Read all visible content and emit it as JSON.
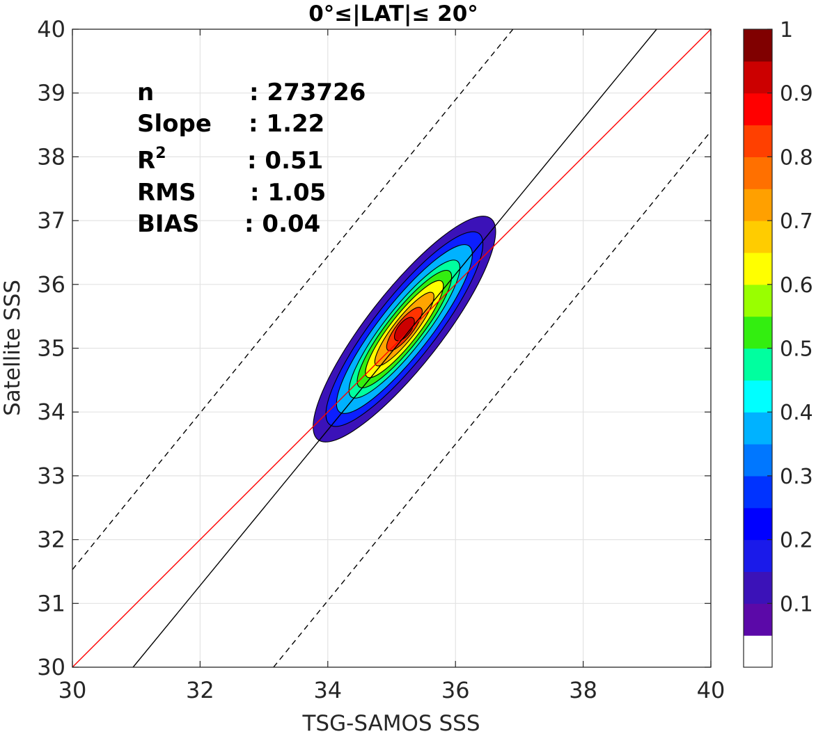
{
  "chart_data": {
    "type": "contour-scatter",
    "title": "0°≤|LAT|≤ 20°",
    "xlabel": "TSG-SAMOS SSS",
    "ylabel": "Satellite SSS",
    "xlim": [
      30,
      40
    ],
    "ylim": [
      30,
      40
    ],
    "x_ticks": [
      "30",
      "32",
      "34",
      "36",
      "38",
      "40"
    ],
    "y_ticks": [
      "30",
      "31",
      "32",
      "33",
      "34",
      "35",
      "36",
      "37",
      "38",
      "39",
      "40"
    ],
    "grid": true,
    "stats": [
      {
        "label": "n",
        "value": ": 273726"
      },
      {
        "label": "Slope",
        "value": ": 1.22"
      },
      {
        "label": "R",
        "sup": "2",
        "value": ": 0.51"
      },
      {
        "label": "RMS",
        "value": ": 1.05"
      },
      {
        "label": "BIAS",
        "value": ": 0.04"
      }
    ],
    "lines": [
      {
        "name": "one-to-one",
        "color": "#ff0000",
        "style": "solid",
        "p1": [
          30,
          30
        ],
        "p2": [
          40,
          40
        ]
      },
      {
        "name": "regression",
        "color": "#000000",
        "style": "solid",
        "p1": [
          30.95,
          30
        ],
        "p2": [
          39.15,
          40
        ]
      },
      {
        "name": "upper-bound",
        "color": "#000000",
        "style": "dashed",
        "p1": [
          30,
          31.53
        ],
        "p2": [
          36.9,
          40
        ]
      },
      {
        "name": "lower-bound",
        "color": "#000000",
        "style": "dashed",
        "p1": [
          33.15,
          30
        ],
        "p2": [
          40,
          38.4
        ]
      }
    ],
    "density_center": [
      35.2,
      35.3
    ],
    "contour_levels": [
      {
        "level": 0.05,
        "color": "#3b12b8",
        "half_major": 2.2,
        "half_minor": 0.58
      },
      {
        "level": 0.15,
        "color": "#0c1fff",
        "half_major": 1.9,
        "half_minor": 0.48
      },
      {
        "level": 0.25,
        "color": "#00b2ff",
        "half_major": 1.65,
        "half_minor": 0.4
      },
      {
        "level": 0.4,
        "color": "#00ff9f",
        "half_major": 1.35,
        "half_minor": 0.32
      },
      {
        "level": 0.5,
        "color": "#33ee10",
        "half_major": 1.15,
        "half_minor": 0.27
      },
      {
        "level": 0.6,
        "color": "#ffff00",
        "half_major": 0.95,
        "half_minor": 0.22
      },
      {
        "level": 0.7,
        "color": "#ffa500",
        "half_major": 0.72,
        "half_minor": 0.17
      },
      {
        "level": 0.85,
        "color": "#ff3300",
        "half_major": 0.42,
        "half_minor": 0.13
      },
      {
        "level": 0.95,
        "color": "#cc0000",
        "half_major": 0.22,
        "half_minor": 0.1
      }
    ],
    "colorbar": {
      "ticks": [
        "0.1",
        "0.2",
        "0.3",
        "0.4",
        "0.5",
        "0.6",
        "0.7",
        "0.8",
        "0.9",
        "1"
      ],
      "tick_values": [
        0.1,
        0.2,
        0.3,
        0.4,
        0.5,
        0.6,
        0.7,
        0.8,
        0.9,
        1.0
      ],
      "colors": [
        "#ffffff",
        "#5b09a8",
        "#3b12b8",
        "#1a1aea",
        "#0000ff",
        "#0033ff",
        "#0077ff",
        "#00b2ff",
        "#00ffff",
        "#00ff9f",
        "#33ee10",
        "#99ff00",
        "#ffff00",
        "#ffcc00",
        "#ffa000",
        "#ff7000",
        "#ff4000",
        "#ff0000",
        "#cc0000",
        "#800000"
      ]
    }
  }
}
